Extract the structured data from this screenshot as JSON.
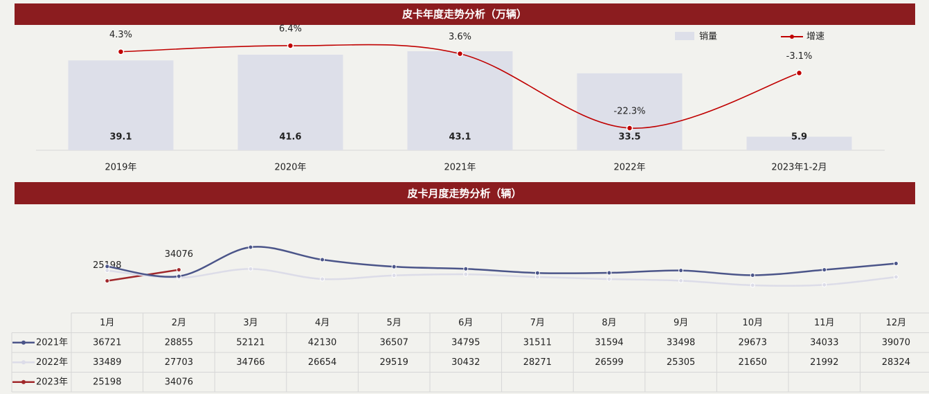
{
  "chart_data": [
    {
      "type": "bar",
      "title": "皮卡年度走势分析（万辆）",
      "categories": [
        "2019年",
        "2020年",
        "2021年",
        "2022年",
        "2023年1-2月"
      ],
      "series": [
        {
          "name": "销量",
          "type": "bar",
          "color": "#dddfe9",
          "values": [
            39.1,
            41.6,
            43.1,
            33.5,
            5.9
          ]
        },
        {
          "name": "增速",
          "type": "line",
          "color": "#c00000",
          "values": [
            4.3,
            6.4,
            3.6,
            -22.3,
            -3.1
          ],
          "value_labels": [
            "4.3%",
            "6.4%",
            "3.6%",
            "-22.3%",
            "-3.1%"
          ]
        }
      ]
    },
    {
      "type": "line",
      "title": "皮卡月度走势分析（辆）",
      "categories": [
        "1月",
        "2月",
        "3月",
        "4月",
        "5月",
        "6月",
        "7月",
        "8月",
        "9月",
        "10月",
        "11月",
        "12月"
      ],
      "series": [
        {
          "name": "2021年",
          "color": "#4b5589",
          "values": [
            36721,
            28855,
            52121,
            42130,
            36507,
            34795,
            31511,
            31594,
            33498,
            29673,
            34033,
            39070
          ]
        },
        {
          "name": "2022年",
          "color": "#dcdce8",
          "values": [
            33489,
            27703,
            34766,
            26654,
            29519,
            30432,
            28271,
            26599,
            25305,
            21650,
            21992,
            28324
          ]
        },
        {
          "name": "2023年",
          "color": "#a0282b",
          "values": [
            25198,
            34076,
            null,
            null,
            null,
            null,
            null,
            null,
            null,
            null,
            null,
            null
          ],
          "data_labels": true
        }
      ]
    }
  ]
}
